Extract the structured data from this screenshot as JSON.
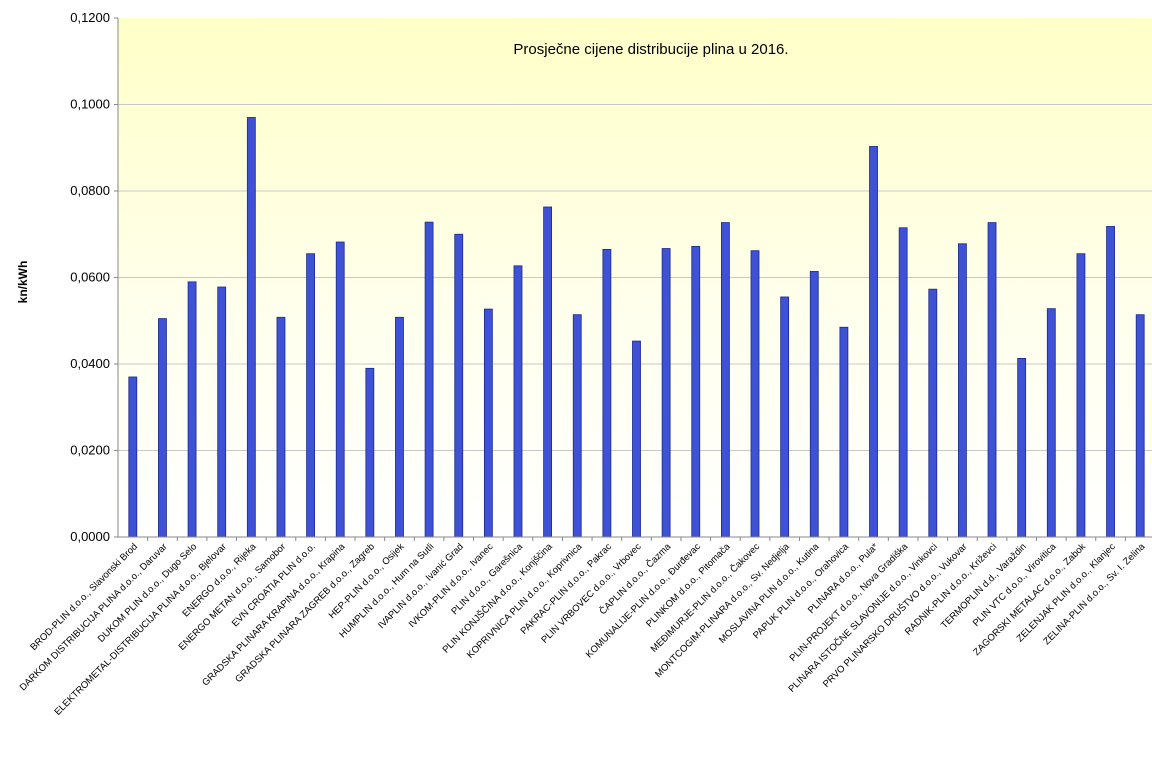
{
  "chart_data": {
    "type": "bar",
    "title": "Prosječne cijene distribucije plina u 2016.",
    "xlabel": "",
    "ylabel": "kn/kWh",
    "ylim": [
      0,
      0.12
    ],
    "yticks": [
      "0,0000",
      "0,0200",
      "0,0400",
      "0,0600",
      "0,0800",
      "0,1000",
      "0,1200"
    ],
    "grid": true,
    "legend": "none",
    "colors": {
      "bar": "#3F51D4",
      "bar_stroke": "#1A2A8C",
      "plot_bg_top": "#FFFFC8",
      "plot_bg_bottom": "#FFFFFF"
    },
    "categories": [
      "BROD-PLIN d.o.o., Slavonski Brod",
      "DARKOM DISTRIBUCIJA PLINA d.o.o., Daruvar",
      "DUKOM PLIN d.o.o., Dugo Selo",
      "ELEKTROMETAL-DISTRIBUCIJA PLINA d.o.o., Bjelovar",
      "ENERGO d.o.o., Rijeka",
      "ENERGO METAN d.o.o., Samobor",
      "EVN CROATIA PLIN d.o.o.",
      "GRADSKA PLINARA KRAPINA d.o.o., Krapina",
      "GRADSKA PLINARA ZAGREB d.o.o., Zagreb",
      "HEP-PLIN d.o.o., Osijek",
      "HUMPLIN d.o.o., Hum na Sutli",
      "IVAPLIN d.o.o., Ivanić Grad",
      "IVKOM-PLIN d.o.o., Ivanec",
      "PLIN d.o.o., Garešnica",
      "PLIN KONJŠČINA d.o.o., Konjščina",
      "KOPRIVNICA PLIN d.o.o., Koprivnica",
      "PAKRAC-PLIN d.o.o., Pakrac",
      "PLIN VRBOVEC d.o.o., Vrbovec",
      "ČAPLIN d.o.o., Čazma",
      "KOMUNALIJE-PLIN d.o.o., Đurđevac",
      "PLINKOM d.o.o., Pitomača",
      "MEĐIMURJE-PLIN d.o.o., Čakovec",
      "MONTCOGIM-PLINARA d.o.o., Sv. Nedjelja",
      "MOSLAVINA PLIN d.o.o., Kutina",
      "PAPUK PLIN d.o.o., Orahovica",
      "PLINARA d.o.o., Pula*",
      "PLIN-PROJEKT d.o.o., Nova Gradiška",
      "PLINARA ISTOČNE SLAVONIJE d.o.o., Vinkovci",
      "PRVO PLINARSKO DRUŠTVO d.o.o., Vukovar",
      "RADNIK-PLIN d.o.o., Križevci",
      "TERMOPLIN d.d., Varaždin",
      "PLIN VTC d.o.o., Virovitica",
      "ZAGORSKI METALAC d.o.o., Zabok",
      "ZELENJAK PLIN d.o.o., Klanjec",
      "ZELINA-PLIN d.o.o., Sv. I. Zelina"
    ],
    "values": [
      0.037,
      0.0505,
      0.059,
      0.0578,
      0.097,
      0.0508,
      0.0655,
      0.0682,
      0.039,
      0.0508,
      0.0728,
      0.07,
      0.0527,
      0.0627,
      0.0763,
      0.0514,
      0.0665,
      0.0453,
      0.0667,
      0.0672,
      0.0727,
      0.0662,
      0.0555,
      0.0614,
      0.0485,
      0.0903,
      0.0715,
      0.0573,
      0.0678,
      0.0727,
      0.0413,
      0.0528,
      0.0655,
      0.0718,
      0.0514
    ]
  }
}
